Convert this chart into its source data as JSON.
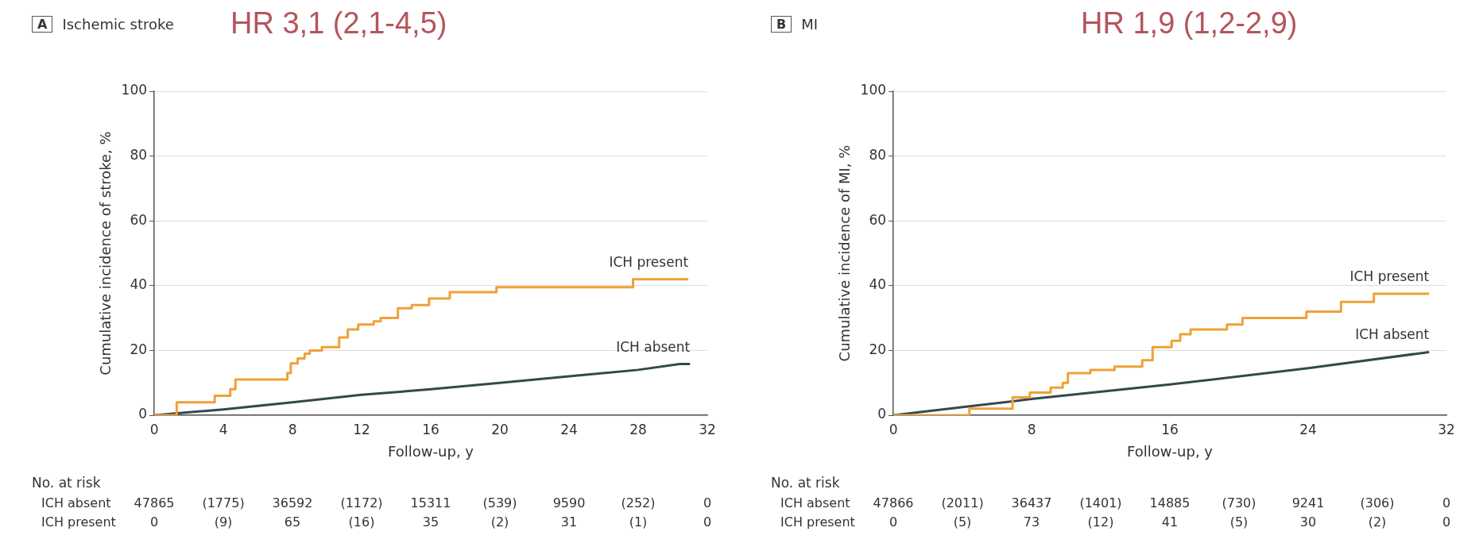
{
  "chart_data": [
    {
      "type": "step",
      "title": "Ischemic stroke",
      "subtitle": "HR 3,1 (2,1-4,5)",
      "xlabel": "Follow-up, y",
      "ylabel": "Cumulative incidence of stroke, %",
      "xlim": [
        0,
        32
      ],
      "xticks": [
        0,
        4,
        8,
        12,
        16,
        20,
        24,
        28,
        32
      ],
      "ylim": [
        0,
        100
      ],
      "yticks": [
        0,
        20,
        40,
        60,
        80,
        100
      ],
      "grid": "y",
      "legend": false,
      "series": [
        {
          "name": "ICH present",
          "color": "#f0a038",
          "x": [
            0,
            1.3,
            3.5,
            4.4,
            4.7,
            7.7,
            7.9,
            8.3,
            8.7,
            9.0,
            9.7,
            10.7,
            11.2,
            11.8,
            12.7,
            13.1,
            14.1,
            14.9,
            15.9,
            17.1,
            19.8,
            27.7,
            30.9
          ],
          "values": [
            0,
            4,
            6,
            8,
            11,
            13,
            16,
            17.5,
            19,
            20,
            21,
            24,
            26.5,
            28,
            29,
            30,
            33,
            34,
            36,
            38,
            39.5,
            42,
            42
          ]
        },
        {
          "name": "ICH absent",
          "type": "line",
          "color": "#33494b",
          "x": [
            0,
            4,
            8,
            12,
            16,
            20,
            24,
            28,
            30.4,
            31
          ],
          "values": [
            0,
            1.8,
            4,
            6.3,
            8,
            10,
            12,
            14,
            15.8,
            15.8
          ]
        }
      ],
      "annotations": [
        "A",
        "No. at risk",
        "ICH absent",
        "47865",
        "(1775)",
        "36592",
        "(1172)",
        "15311",
        "(539)",
        "9590",
        "(252)",
        "0",
        "ICH present",
        "0",
        "(9)",
        "65",
        "(16)",
        "35",
        "(2)",
        "31",
        "(1)",
        "0"
      ]
    },
    {
      "type": "step",
      "title": "MI",
      "subtitle": "HR 1,9 (1,2-2,9)",
      "xlabel": "Follow-up, y",
      "ylabel": "Cumulative incidence of MI, %",
      "xlim": [
        0,
        32
      ],
      "xticks": [
        0,
        8,
        16,
        24,
        32
      ],
      "ylim": [
        0,
        100
      ],
      "yticks": [
        0,
        20,
        40,
        60,
        80,
        100
      ],
      "grid": "y",
      "legend": false,
      "series": [
        {
          "name": "ICH present",
          "color": "#f0a038",
          "x": [
            0,
            4.4,
            6.9,
            7.9,
            9.1,
            9.8,
            10.1,
            11.4,
            12.8,
            14.4,
            15.0,
            16.1,
            16.6,
            17.2,
            19.3,
            20.2,
            23.9,
            25.9,
            27.8,
            31
          ],
          "values": [
            0,
            2,
            5.5,
            7,
            8.5,
            10,
            13,
            14,
            15,
            17,
            21,
            23,
            25,
            26.5,
            28,
            30,
            32,
            35,
            37.5,
            37.5
          ]
        },
        {
          "name": "ICH absent",
          "type": "line",
          "color": "#33494b",
          "x": [
            0,
            8,
            16,
            24,
            31
          ],
          "values": [
            0,
            5,
            9.5,
            14.5,
            19.5
          ]
        }
      ],
      "annotations": [
        "B",
        "No. at risk",
        "ICH absent",
        "47866",
        "(2011)",
        "36437",
        "(1401)",
        "14885",
        "(730)",
        "9241",
        "(306)",
        "0",
        "ICH present",
        "0",
        "(5)",
        "73",
        "(12)",
        "41",
        "(5)",
        "30",
        "(2)",
        "0"
      ]
    }
  ]
}
